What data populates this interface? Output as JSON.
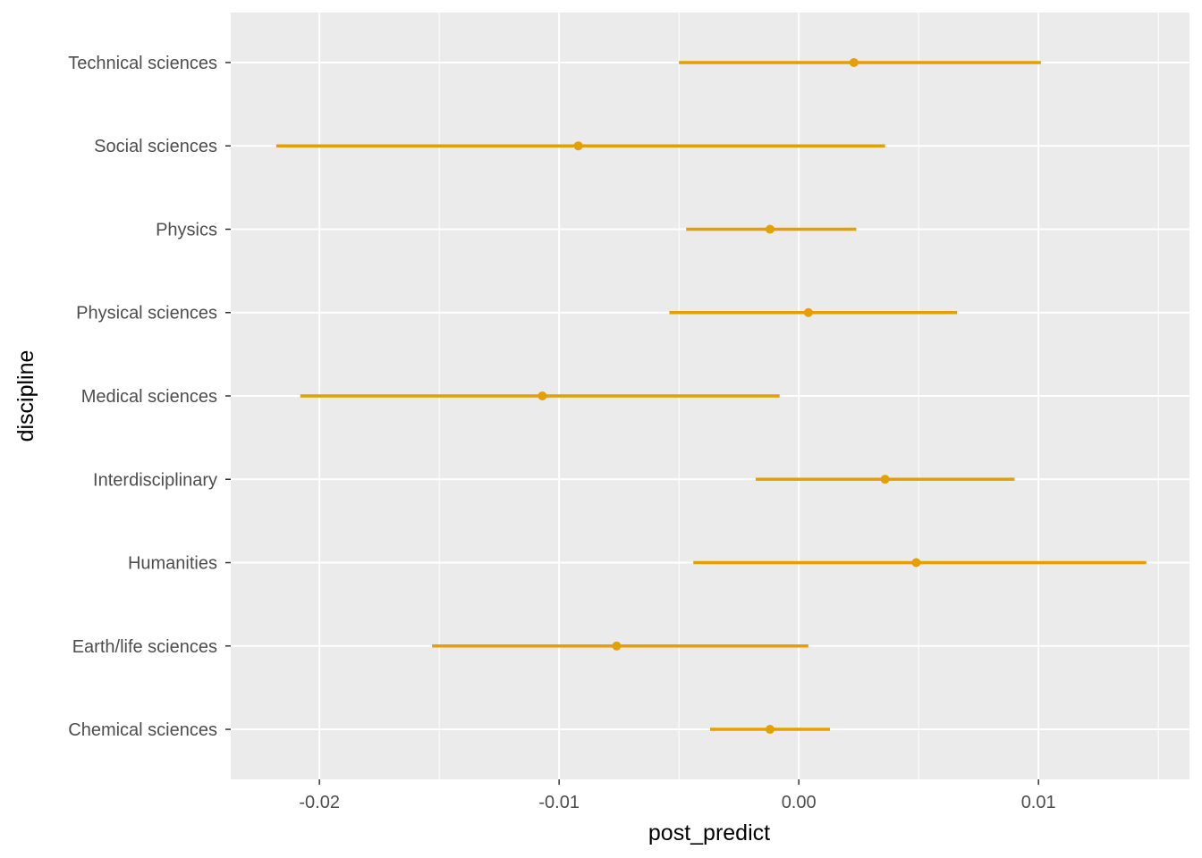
{
  "chart_data": {
    "type": "pointrange",
    "title": "",
    "xlabel": "post_predict",
    "ylabel": "discipline",
    "xlim": [
      -0.0237,
      0.0163
    ],
    "x_ticks": [
      -0.02,
      -0.01,
      0.0,
      0.01
    ],
    "x_tick_labels": [
      "-0.02",
      "-0.01",
      "0.00",
      "0.01"
    ],
    "grid": true,
    "color": "#E69F00",
    "panel_background": "#EBEBEB",
    "categories": [
      "Chemical sciences",
      "Earth/life sciences",
      "Humanities",
      "Interdisciplinary",
      "Medical sciences",
      "Physical sciences",
      "Physics",
      "Social sciences",
      "Technical sciences"
    ],
    "points": [
      {
        "category": "Chemical sciences",
        "estimate": -0.0012,
        "lower": -0.0037,
        "upper": 0.0013
      },
      {
        "category": "Earth/life sciences",
        "estimate": -0.0076,
        "lower": -0.0153,
        "upper": 0.0004
      },
      {
        "category": "Humanities",
        "estimate": 0.0049,
        "lower": -0.0044,
        "upper": 0.0145
      },
      {
        "category": "Interdisciplinary",
        "estimate": 0.0036,
        "lower": -0.0018,
        "upper": 0.009
      },
      {
        "category": "Medical sciences",
        "estimate": -0.0107,
        "lower": -0.0208,
        "upper": -0.0008
      },
      {
        "category": "Physical sciences",
        "estimate": 0.0004,
        "lower": -0.0054,
        "upper": 0.0066
      },
      {
        "category": "Physics",
        "estimate": -0.0012,
        "lower": -0.0047,
        "upper": 0.0024
      },
      {
        "category": "Social sciences",
        "estimate": -0.0092,
        "lower": -0.0218,
        "upper": 0.0036
      },
      {
        "category": "Technical sciences",
        "estimate": 0.0023,
        "lower": -0.005,
        "upper": 0.0101
      }
    ]
  }
}
